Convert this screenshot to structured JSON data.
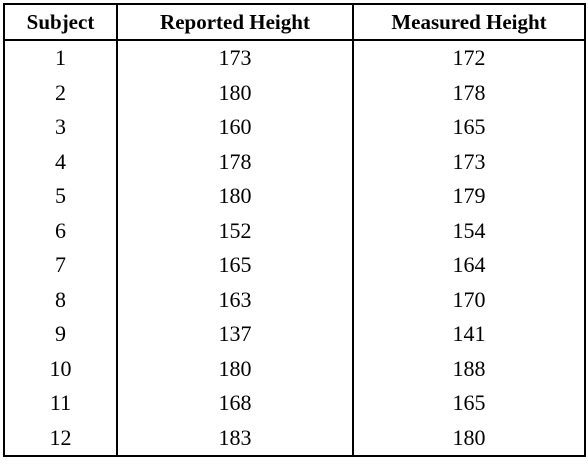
{
  "table": {
    "headers": [
      "Subject",
      "Reported Height",
      "Measured Height"
    ],
    "rows": [
      [
        "1",
        "173",
        "172"
      ],
      [
        "2",
        "180",
        "178"
      ],
      [
        "3",
        "160",
        "165"
      ],
      [
        "4",
        "178",
        "173"
      ],
      [
        "5",
        "180",
        "179"
      ],
      [
        "6",
        "152",
        "154"
      ],
      [
        "7",
        "165",
        "164"
      ],
      [
        "8",
        "163",
        "170"
      ],
      [
        "9",
        "137",
        "141"
      ],
      [
        "10",
        "180",
        "188"
      ],
      [
        "11",
        "168",
        "165"
      ],
      [
        "12",
        "183",
        "180"
      ]
    ]
  }
}
